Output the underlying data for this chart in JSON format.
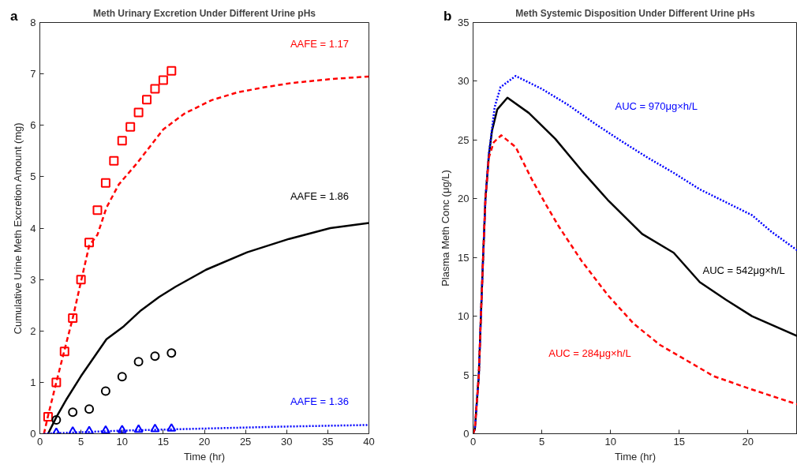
{
  "chart_data": [
    {
      "type": "line",
      "title": "Meth Urinary Excretion Under Different Urine pHs",
      "xlabel": "Time (hr)",
      "ylabel": "Cumulative Urine Meth Excretion Amount (mg)",
      "xlim": [
        0,
        40
      ],
      "ylim": [
        0,
        8
      ],
      "xticks": [
        0,
        5,
        10,
        15,
        20,
        25,
        30,
        35,
        40
      ],
      "yticks": [
        0,
        1,
        2,
        3,
        4,
        5,
        6,
        7,
        8
      ],
      "series": [
        {
          "name": "AAFE = 1.17",
          "line_style": "dashed",
          "color": "#ff0000",
          "x": [
            0.5,
            1,
            2,
            3,
            4,
            5,
            6,
            7,
            8.1,
            9.6,
            11.8,
            15,
            17.6,
            20.9,
            24,
            27.3,
            30.5,
            35.4,
            40
          ],
          "values": [
            0,
            0.35,
            1.0,
            1.63,
            2.25,
            2.96,
            3.66,
            3.87,
            4.4,
            4.85,
            5.26,
            5.92,
            6.23,
            6.49,
            6.64,
            6.74,
            6.82,
            6.9,
            6.95
          ]
        },
        {
          "name": "AAFE = 1.86",
          "line_style": "solid",
          "color": "#000000",
          "x": [
            1,
            2,
            3.2,
            5,
            8.1,
            10.2,
            12.3,
            14.5,
            16.5,
            20.2,
            25.2,
            30.3,
            35.3,
            40
          ],
          "values": [
            0,
            0.32,
            0.66,
            1.12,
            1.84,
            2.09,
            2.4,
            2.66,
            2.86,
            3.19,
            3.53,
            3.79,
            4.0,
            4.1
          ]
        },
        {
          "name": "AAFE = 1.36",
          "line_style": "dotted",
          "color": "#0000ff",
          "x": [
            0.5,
            2,
            5,
            10,
            20,
            30,
            40
          ],
          "values": [
            0,
            0.01,
            0.03,
            0.06,
            0.1,
            0.14,
            0.17
          ]
        },
        {
          "type": "scatter",
          "marker": "square",
          "color": "#ff0000",
          "x": [
            1,
            2,
            3,
            4,
            5,
            6,
            7,
            8,
            9,
            10,
            11,
            12,
            13,
            14,
            15,
            16
          ],
          "values": [
            0.33,
            1.0,
            1.6,
            2.25,
            3.0,
            3.72,
            4.35,
            4.88,
            5.31,
            5.7,
            5.97,
            6.25,
            6.5,
            6.71,
            6.88,
            7.06
          ]
        },
        {
          "type": "scatter",
          "marker": "circle",
          "color": "#000000",
          "x": [
            2,
            4,
            6,
            8,
            10,
            12,
            14,
            16
          ],
          "values": [
            0.27,
            0.42,
            0.48,
            0.83,
            1.11,
            1.4,
            1.51,
            1.57
          ]
        },
        {
          "type": "scatter",
          "marker": "triangle",
          "color": "#0000ff",
          "x": [
            2,
            4,
            6,
            8,
            10,
            12,
            14,
            16
          ],
          "values": [
            0.02,
            0.04,
            0.05,
            0.06,
            0.07,
            0.08,
            0.09,
            0.1
          ]
        }
      ],
      "annotations": [
        "a"
      ]
    },
    {
      "type": "line",
      "title": "Meth Systemic Disposition Under Different Urine pHs",
      "xlabel": "Time (hr)",
      "ylabel": "Plasma Meth Conc (μg/L)",
      "xlim": [
        0,
        23.6
      ],
      "ylim": [
        0,
        35
      ],
      "xticks": [
        0,
        5,
        10,
        15,
        20
      ],
      "yticks": [
        0,
        5,
        10,
        15,
        20,
        25,
        30,
        35
      ],
      "series": [
        {
          "name": "AUC = 542μg×h/L",
          "line_style": "solid",
          "color": "#000000",
          "x": [
            0,
            0.13,
            0.42,
            0.57,
            0.73,
            0.9,
            1.15,
            1.38,
            1.76,
            2.5,
            4.06,
            5.98,
            7.9,
            9.8,
            12.3,
            14.6,
            16.5,
            18.4,
            20.3,
            23.6
          ],
          "values": [
            0,
            0.4,
            5,
            10,
            15,
            20,
            23.7,
            25.8,
            27.6,
            28.6,
            27.3,
            25.1,
            22.4,
            19.9,
            17.0,
            15.4,
            12.9,
            11.4,
            10.0,
            8.3
          ]
        },
        {
          "name": "AUC = 970μg×h/L",
          "line_style": "dotted",
          "color": "#0000ff",
          "x": [
            0,
            0.13,
            0.42,
            0.57,
            0.73,
            0.9,
            1.15,
            1.57,
            2.0,
            3.1,
            5.0,
            6.9,
            8.85,
            10.8,
            12.7,
            14.6,
            16.5,
            18.4,
            20.3,
            21.7,
            23.6
          ],
          "values": [
            0,
            0.4,
            5,
            10,
            15,
            20,
            23.8,
            27.8,
            29.5,
            30.45,
            29.35,
            28.0,
            26.4,
            24.9,
            23.5,
            22.2,
            20.8,
            19.7,
            18.6,
            17.2,
            15.6
          ]
        },
        {
          "name": "AUC = 284μg×h/L",
          "line_style": "dashed",
          "color": "#ff0000",
          "x": [
            0,
            0.13,
            0.42,
            0.57,
            0.73,
            0.9,
            1.15,
            1.5,
            2.05,
            3.1,
            4.25,
            5.4,
            6.26,
            7.9,
            9.8,
            11.7,
            13.6,
            15.6,
            17.5,
            20.3,
            23.6
          ],
          "values": [
            0,
            0.4,
            5,
            10,
            15,
            20,
            23.5,
            24.8,
            25.4,
            24.4,
            21.7,
            19.3,
            17.6,
            14.7,
            11.8,
            9.35,
            7.56,
            6.2,
            4.9,
            3.76,
            2.5
          ]
        }
      ],
      "annotations": [
        "b"
      ]
    }
  ]
}
